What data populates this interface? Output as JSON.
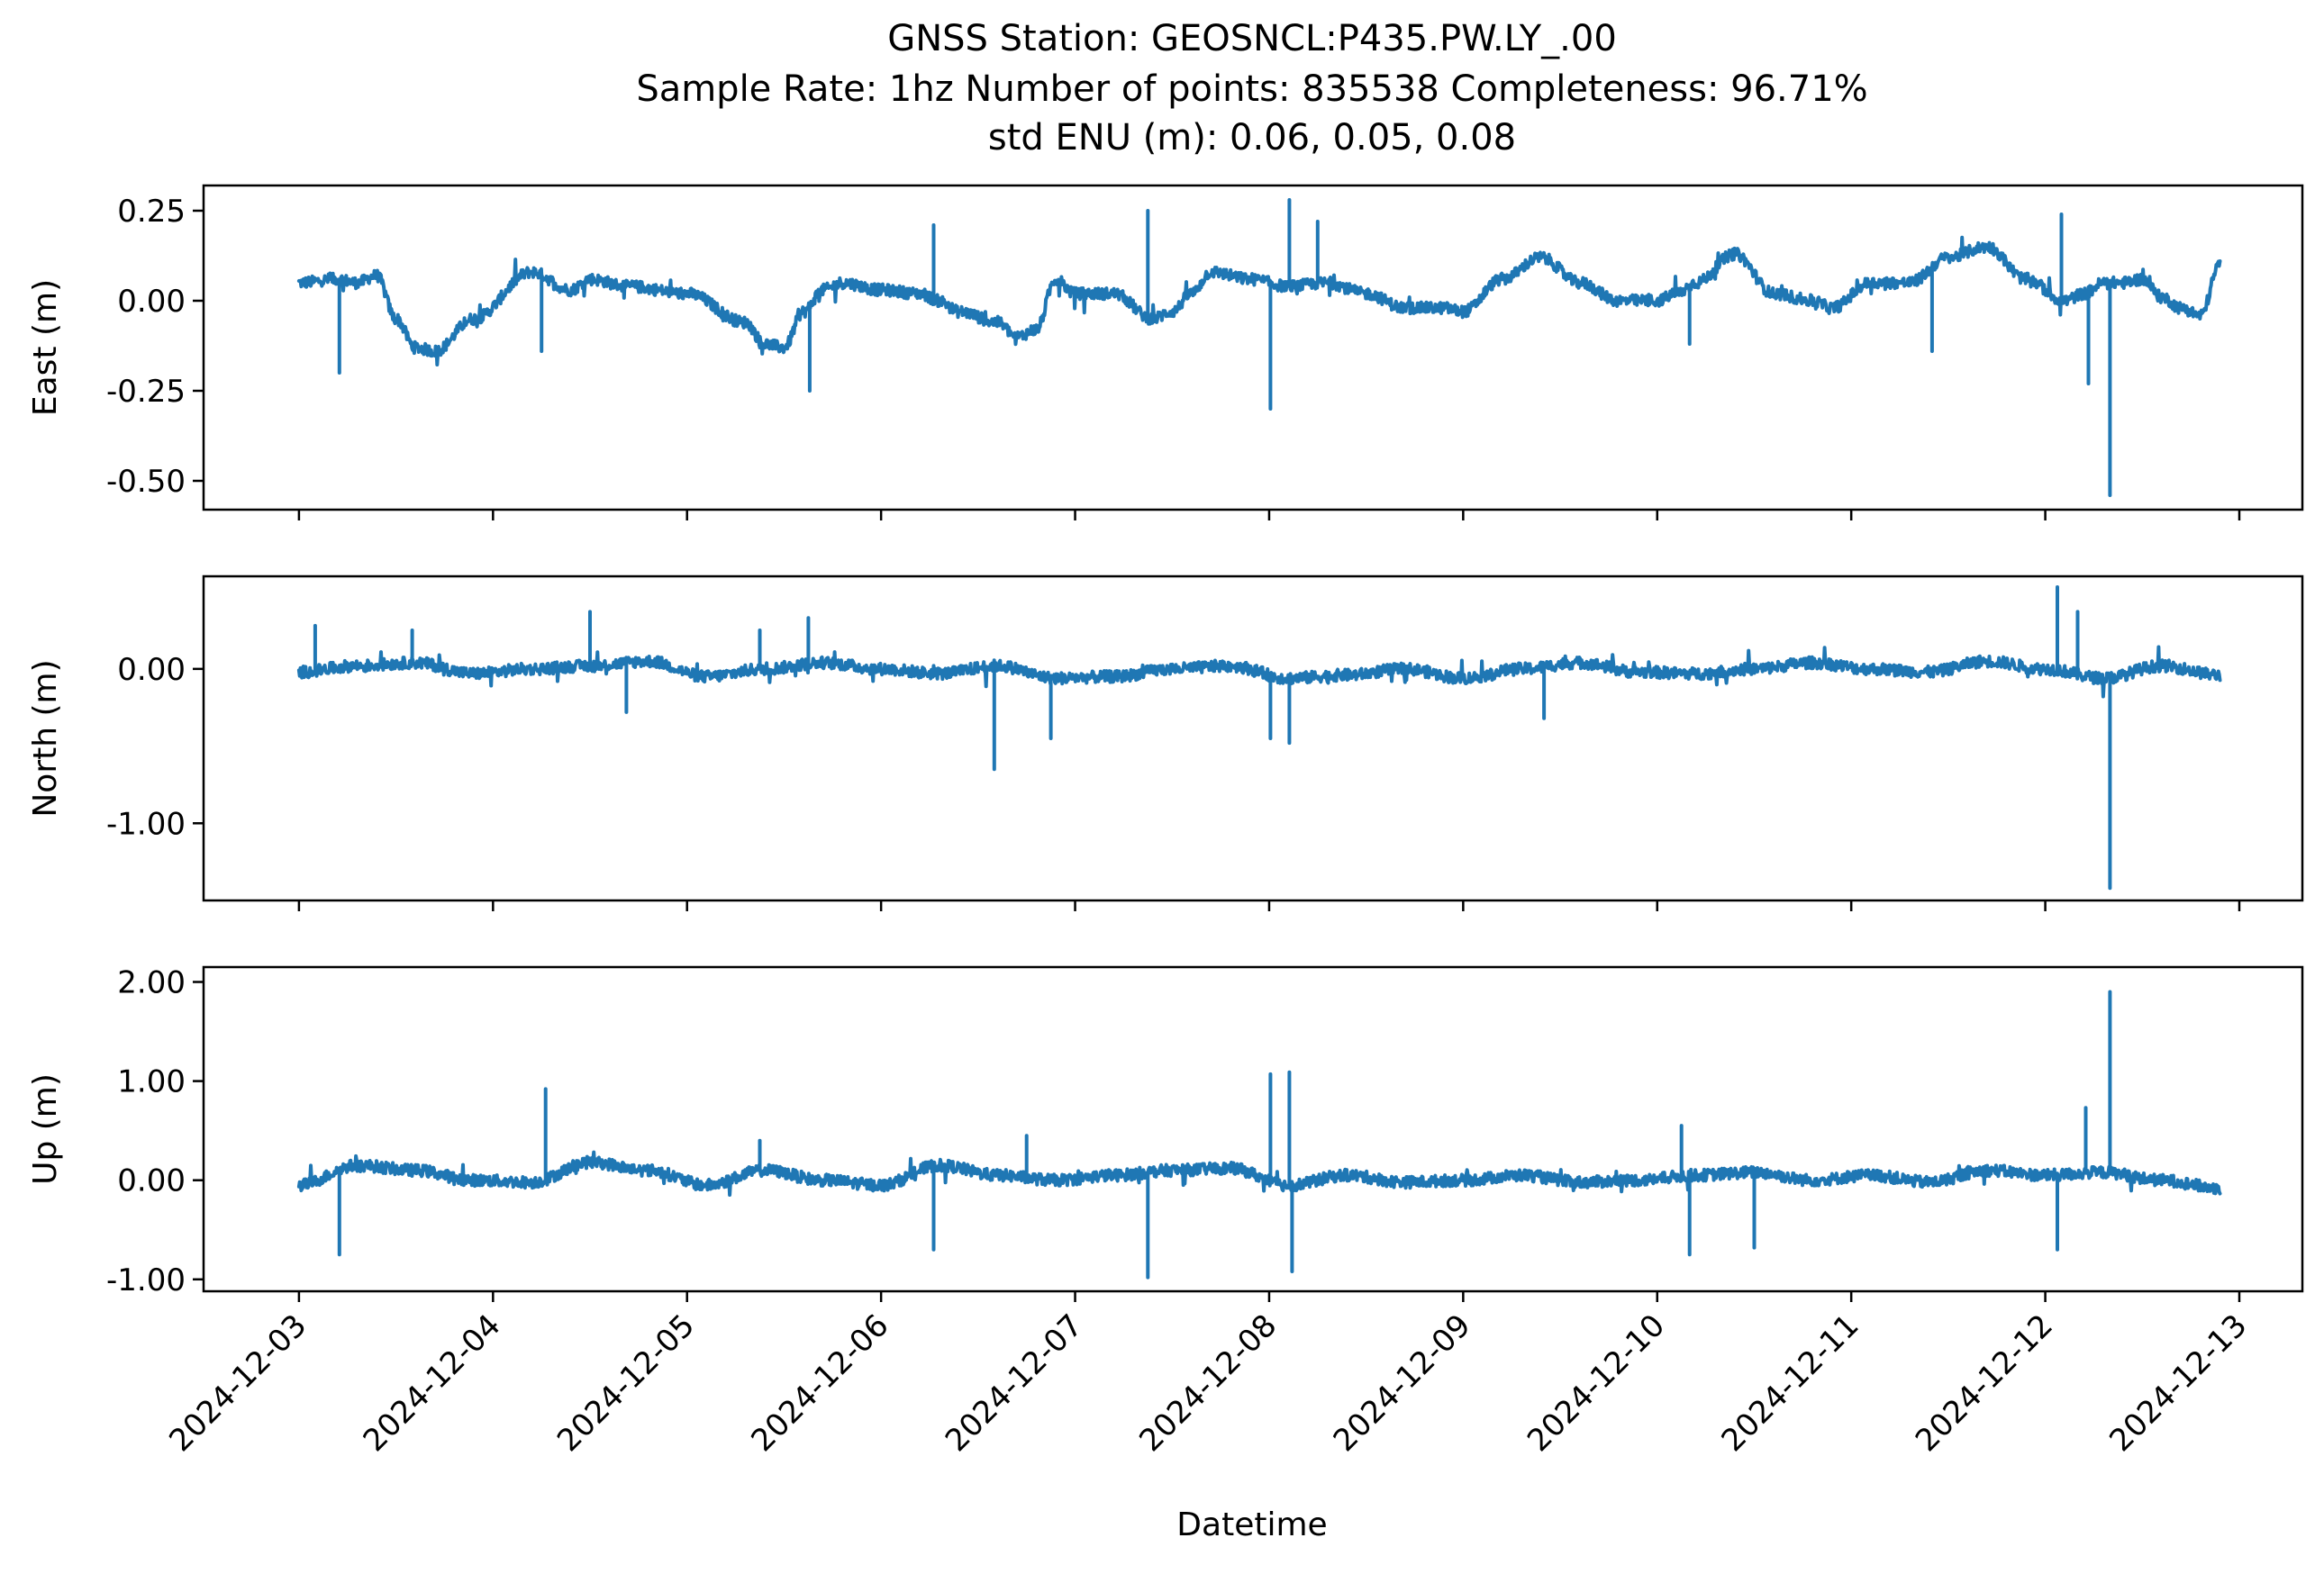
{
  "figure": {
    "title_lines": [
      "GNSS Station: GEOSNCL:P435.PW.LY_.00",
      "Sample Rate: 1hz   Number of points: 835538    Completeness:  96.71%",
      "std ENU (m):  0.06, 0.05, 0.08"
    ],
    "xlabel": "Datetime",
    "line_color": "#1f77b4"
  },
  "chart_data": [
    {
      "type": "line",
      "name": "east",
      "title": "GNSS Station: GEOSNCL:P435.PW.LY_.00 / Sample Rate: 1hz   Number of points: 835538    Completeness:  96.71% / std ENU (m):  0.06, 0.05, 0.08",
      "ylabel": "East (m)",
      "xlabel": "",
      "x_range": [
        "2024-12-02T12:12",
        "2024-12-13T07:48"
      ],
      "ylim": [
        -0.58,
        0.32
      ],
      "yticks": [
        0.25,
        0.0,
        -0.25,
        -0.5
      ],
      "ytick_labels": [
        "0.25",
        "0.00",
        "-0.25",
        "-0.50"
      ],
      "xticks": [
        "2024-12-03",
        "2024-12-04",
        "2024-12-05",
        "2024-12-06",
        "2024-12-07",
        "2024-12-08",
        "2024-12-09",
        "2024-12-10",
        "2024-12-11",
        "2024-12-12",
        "2024-12-13"
      ],
      "xtick_labels_visible": false,
      "x": [
        "2024-12-03 00:00",
        "2024-12-03 04:48",
        "2024-12-03 07:12",
        "2024-12-03 09:36",
        "2024-12-03 12:00",
        "2024-12-03 14:24",
        "2024-12-03 16:48",
        "2024-12-03 21:36",
        "2024-12-04 04:48",
        "2024-12-04 09:36",
        "2024-12-04 12:00",
        "2024-12-04 16:48",
        "2024-12-05 00:00",
        "2024-12-05 07:12",
        "2024-12-05 09:36",
        "2024-12-05 12:00",
        "2024-12-05 14:24",
        "2024-12-05 16:48",
        "2024-12-05 19:12",
        "2024-12-06 00:00",
        "2024-12-06 04:48",
        "2024-12-06 07:12",
        "2024-12-06 09:36",
        "2024-12-06 14:24",
        "2024-12-06 16:48",
        "2024-12-06 19:12",
        "2024-12-06 21:36",
        "2024-12-07 00:00",
        "2024-12-07 04:48",
        "2024-12-07 09:36",
        "2024-12-07 12:00",
        "2024-12-07 14:24",
        "2024-12-07 16:48",
        "2024-12-07 21:36",
        "2024-12-08 02:24",
        "2024-12-08 07:12",
        "2024-12-08 12:00",
        "2024-12-08 16:48",
        "2024-12-08 21:36",
        "2024-12-09 00:00",
        "2024-12-09 04:48",
        "2024-12-09 09:36",
        "2024-12-09 14:24",
        "2024-12-09 19:12",
        "2024-12-10 00:00",
        "2024-12-10 02:24",
        "2024-12-10 04:48",
        "2024-12-10 09:36",
        "2024-12-10 14:24",
        "2024-12-10 19:12",
        "2024-12-10 21:36",
        "2024-12-11 02:24",
        "2024-12-11 07:12",
        "2024-12-11 12:00",
        "2024-12-11 16:48",
        "2024-12-11 21:36",
        "2024-12-12 02:24",
        "2024-12-12 04:48",
        "2024-12-12 07:12",
        "2024-12-12 09:36",
        "2024-12-12 12:00",
        "2024-12-12 14:24",
        "2024-12-12 16:48",
        "2024-12-12 19:12",
        "2024-12-12 21:36"
      ],
      "values": [
        0.05,
        0.06,
        0.05,
        0.07,
        -0.05,
        -0.13,
        -0.14,
        -0.05,
        0.08,
        0.03,
        0.06,
        0.04,
        0.02,
        -0.06,
        -0.12,
        -0.13,
        -0.03,
        0.03,
        0.05,
        0.03,
        0.02,
        0.0,
        -0.03,
        -0.06,
        -0.1,
        -0.08,
        0.06,
        0.02,
        0.02,
        -0.05,
        -0.03,
        0.02,
        0.08,
        0.06,
        0.04,
        0.05,
        0.02,
        -0.02,
        -0.02,
        -0.03,
        0.06,
        0.12,
        0.05,
        0.0,
        0.0,
        0.02,
        0.05,
        0.13,
        0.02,
        0.0,
        -0.02,
        0.05,
        0.05,
        0.12,
        0.15,
        0.06,
        0.0,
        0.02,
        0.05,
        0.05,
        0.06,
        0.01,
        -0.02,
        -0.04,
        0.1
      ],
      "spikes": [
        {
          "x": "2024-12-03 05:00",
          "y": -0.2
        },
        {
          "x": "2024-12-04 06:00",
          "y": -0.14
        },
        {
          "x": "2024-12-05 09:00",
          "y": -0.13
        },
        {
          "x": "2024-12-05 15:10",
          "y": -0.25
        },
        {
          "x": "2024-12-06 06:30",
          "y": 0.21
        },
        {
          "x": "2024-12-07 09:00",
          "y": 0.25
        },
        {
          "x": "2024-12-08 00:10",
          "y": -0.3
        },
        {
          "x": "2024-12-08 02:30",
          "y": 0.28
        },
        {
          "x": "2024-12-08 06:00",
          "y": 0.22
        },
        {
          "x": "2024-12-10 04:00",
          "y": -0.12
        },
        {
          "x": "2024-12-11 10:00",
          "y": -0.14
        },
        {
          "x": "2024-12-12 02:00",
          "y": 0.24
        },
        {
          "x": "2024-12-12 05:20",
          "y": -0.23
        },
        {
          "x": "2024-12-12 08:00",
          "y": -0.54
        }
      ]
    },
    {
      "type": "line",
      "name": "north",
      "ylabel": "North (m)",
      "xlabel": "",
      "x_range": [
        "2024-12-02T12:12",
        "2024-12-13T07:48"
      ],
      "ylim": [
        -1.5,
        0.6
      ],
      "yticks": [
        0.0,
        -1.0
      ],
      "ytick_labels": [
        "0.00",
        "-1.00"
      ],
      "xticks": [
        "2024-12-03",
        "2024-12-04",
        "2024-12-05",
        "2024-12-06",
        "2024-12-07",
        "2024-12-08",
        "2024-12-09",
        "2024-12-10",
        "2024-12-11",
        "2024-12-12",
        "2024-12-13"
      ],
      "xtick_labels_visible": false,
      "x": [
        "2024-12-03 00:00",
        "2024-12-03 07:12",
        "2024-12-03 14:24",
        "2024-12-03 21:36",
        "2024-12-04 04:48",
        "2024-12-04 12:00",
        "2024-12-04 19:12",
        "2024-12-05 02:24",
        "2024-12-05 09:36",
        "2024-12-05 16:48",
        "2024-12-06 00:00",
        "2024-12-06 07:12",
        "2024-12-06 14:24",
        "2024-12-06 21:36",
        "2024-12-07 04:48",
        "2024-12-07 12:00",
        "2024-12-07 19:12",
        "2024-12-08 02:24",
        "2024-12-08 09:36",
        "2024-12-08 16:48",
        "2024-12-09 00:00",
        "2024-12-09 07:12",
        "2024-12-09 14:24",
        "2024-12-09 21:36",
        "2024-12-10 04:48",
        "2024-12-10 12:00",
        "2024-12-10 19:12",
        "2024-12-11 02:24",
        "2024-12-11 09:36",
        "2024-12-11 16:48",
        "2024-12-12 00:00",
        "2024-12-12 07:12",
        "2024-12-12 14:24",
        "2024-12-12 21:36"
      ],
      "values": [
        -0.02,
        0.02,
        0.04,
        -0.03,
        0.0,
        0.02,
        0.05,
        -0.05,
        0.0,
        0.04,
        0.0,
        -0.03,
        0.02,
        -0.06,
        -0.05,
        0.0,
        0.02,
        -0.06,
        -0.04,
        0.0,
        -0.06,
        0.0,
        0.04,
        -0.02,
        -0.03,
        0.0,
        0.04,
        0.0,
        -0.02,
        0.05,
        0.0,
        -0.06,
        0.02,
        -0.04
      ],
      "spikes": [
        {
          "x": "2024-12-03 02:00",
          "y": 0.28
        },
        {
          "x": "2024-12-03 14:00",
          "y": 0.25
        },
        {
          "x": "2024-12-04 12:00",
          "y": 0.37
        },
        {
          "x": "2024-12-04 16:30",
          "y": -0.28
        },
        {
          "x": "2024-12-05 09:00",
          "y": 0.25
        },
        {
          "x": "2024-12-05 15:00",
          "y": 0.33
        },
        {
          "x": "2024-12-06 14:00",
          "y": -0.65
        },
        {
          "x": "2024-12-06 21:00",
          "y": -0.45
        },
        {
          "x": "2024-12-08 00:10",
          "y": -0.45
        },
        {
          "x": "2024-12-08 02:30",
          "y": -0.48
        },
        {
          "x": "2024-12-09 10:00",
          "y": -0.32
        },
        {
          "x": "2024-12-12 01:30",
          "y": 0.53
        },
        {
          "x": "2024-12-12 04:00",
          "y": 0.37
        },
        {
          "x": "2024-12-12 08:00",
          "y": -1.42
        }
      ]
    },
    {
      "type": "line",
      "name": "up",
      "ylabel": "Up (m)",
      "xlabel": "Datetime",
      "x_range": [
        "2024-12-02T12:12",
        "2024-12-13T07:48"
      ],
      "ylim": [
        -1.12,
        2.15
      ],
      "yticks": [
        2.0,
        1.0,
        0.0,
        -1.0
      ],
      "ytick_labels": [
        "2.00",
        "1.00",
        "0.00",
        "-1.00"
      ],
      "xticks": [
        "2024-12-03",
        "2024-12-04",
        "2024-12-05",
        "2024-12-06",
        "2024-12-07",
        "2024-12-08",
        "2024-12-09",
        "2024-12-10",
        "2024-12-11",
        "2024-12-12",
        "2024-12-13"
      ],
      "xtick_labels": [
        "2024-12-03",
        "2024-12-04",
        "2024-12-05",
        "2024-12-06",
        "2024-12-07",
        "2024-12-08",
        "2024-12-09",
        "2024-12-10",
        "2024-12-11",
        "2024-12-12",
        "2024-12-13"
      ],
      "x": [
        "2024-12-03 00:00",
        "2024-12-03 07:12",
        "2024-12-03 14:24",
        "2024-12-03 21:36",
        "2024-12-04 04:48",
        "2024-12-04 12:00",
        "2024-12-04 19:12",
        "2024-12-05 02:24",
        "2024-12-05 09:36",
        "2024-12-05 16:48",
        "2024-12-06 00:00",
        "2024-12-06 07:12",
        "2024-12-06 14:24",
        "2024-12-06 21:36",
        "2024-12-07 04:48",
        "2024-12-07 12:00",
        "2024-12-07 19:12",
        "2024-12-08 02:24",
        "2024-12-08 09:36",
        "2024-12-08 16:48",
        "2024-12-09 00:00",
        "2024-12-09 07:12",
        "2024-12-09 14:24",
        "2024-12-09 21:36",
        "2024-12-10 04:48",
        "2024-12-10 12:00",
        "2024-12-10 19:12",
        "2024-12-11 02:24",
        "2024-12-11 09:36",
        "2024-12-11 16:48",
        "2024-12-12 00:00",
        "2024-12-12 07:12",
        "2024-12-12 14:24",
        "2024-12-12 21:36"
      ],
      "values": [
        -0.05,
        0.15,
        0.1,
        0.0,
        -0.02,
        0.18,
        0.1,
        -0.05,
        0.1,
        0.0,
        -0.05,
        0.15,
        0.05,
        0.0,
        0.05,
        0.1,
        0.12,
        -0.05,
        0.05,
        -0.02,
        0.0,
        0.05,
        -0.02,
        0.0,
        0.05,
        0.08,
        0.0,
        0.05,
        -0.02,
        0.1,
        0.05,
        0.08,
        0.0,
        -0.08
      ],
      "spikes": [
        {
          "x": "2024-12-03 05:00",
          "y": -0.75
        },
        {
          "x": "2024-12-04 06:30",
          "y": 0.92
        },
        {
          "x": "2024-12-05 09:00",
          "y": 0.4
        },
        {
          "x": "2024-12-06 06:30",
          "y": -0.7
        },
        {
          "x": "2024-12-06 18:00",
          "y": 0.45
        },
        {
          "x": "2024-12-07 09:00",
          "y": -0.98
        },
        {
          "x": "2024-12-08 00:10",
          "y": 1.07
        },
        {
          "x": "2024-12-08 02:30",
          "y": 1.09
        },
        {
          "x": "2024-12-08 02:50",
          "y": -0.92
        },
        {
          "x": "2024-12-10 03:00",
          "y": 0.55
        },
        {
          "x": "2024-12-10 04:00",
          "y": -0.75
        },
        {
          "x": "2024-12-10 12:00",
          "y": -0.68
        },
        {
          "x": "2024-12-12 01:30",
          "y": -0.7
        },
        {
          "x": "2024-12-12 05:00",
          "y": 0.73
        },
        {
          "x": "2024-12-12 08:00",
          "y": 1.9
        }
      ]
    }
  ]
}
